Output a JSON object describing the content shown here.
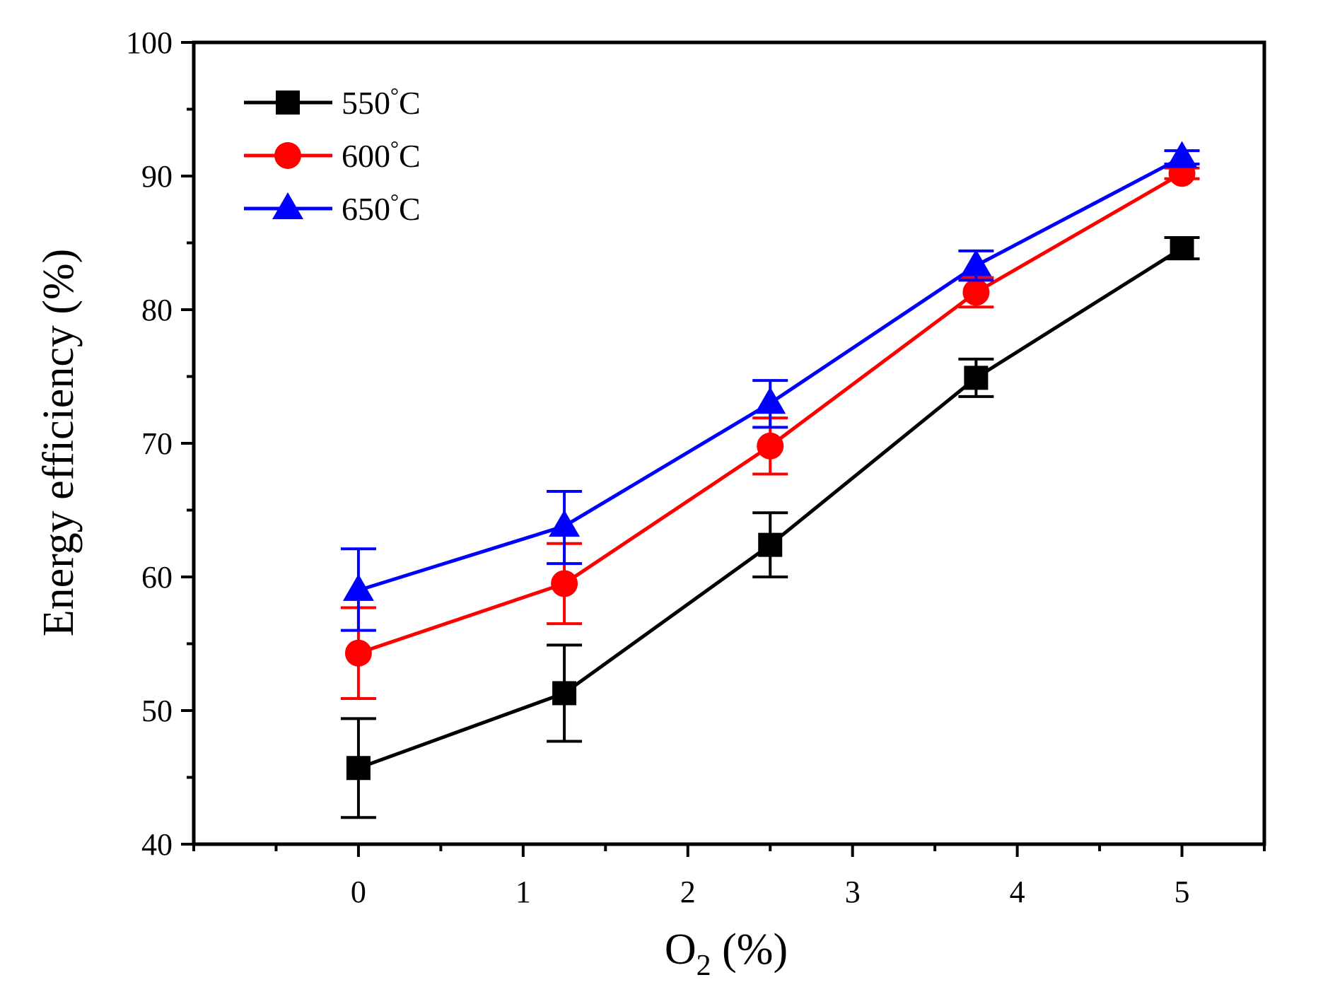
{
  "chart_data": {
    "type": "line",
    "xlabel": {
      "main": "O",
      "sub": "2",
      "rest": " (%)"
    },
    "ylabel": "Energy efficiency (%)",
    "xlim": [
      -1,
      5.5
    ],
    "ylim": [
      40,
      100
    ],
    "xticks": [
      "0",
      "1",
      "2",
      "3",
      "4",
      "5"
    ],
    "yticks": [
      "40",
      "50",
      "60",
      "70",
      "80",
      "90",
      "100"
    ],
    "grid": false,
    "legend_position": "top-left",
    "x": [
      0,
      1.25,
      2.5,
      3.75,
      5
    ],
    "series": [
      {
        "name": "550",
        "unit": "°C",
        "color": "#000000",
        "marker": "square",
        "values": [
          45.7,
          51.3,
          62.4,
          74.9,
          84.6
        ],
        "error_low": [
          42.0,
          47.7,
          60.0,
          73.5,
          83.8
        ],
        "error_high": [
          49.4,
          54.9,
          64.8,
          76.3,
          85.4
        ]
      },
      {
        "name": "600",
        "unit": "°C",
        "color": "#ff0000",
        "marker": "circle",
        "values": [
          54.3,
          59.5,
          69.8,
          81.3,
          90.2
        ],
        "error_low": [
          50.9,
          56.5,
          67.7,
          80.2,
          89.8
        ],
        "error_high": [
          57.7,
          62.5,
          71.9,
          82.4,
          90.6
        ]
      },
      {
        "name": "650",
        "unit": "°C",
        "color": "#0000ff",
        "marker": "triangle",
        "values": [
          59.0,
          63.8,
          73.0,
          83.3,
          91.4
        ],
        "error_low": [
          56.0,
          61.0,
          71.2,
          82.2,
          90.9
        ],
        "error_high": [
          62.1,
          66.4,
          74.7,
          84.4,
          91.9
        ]
      }
    ]
  }
}
